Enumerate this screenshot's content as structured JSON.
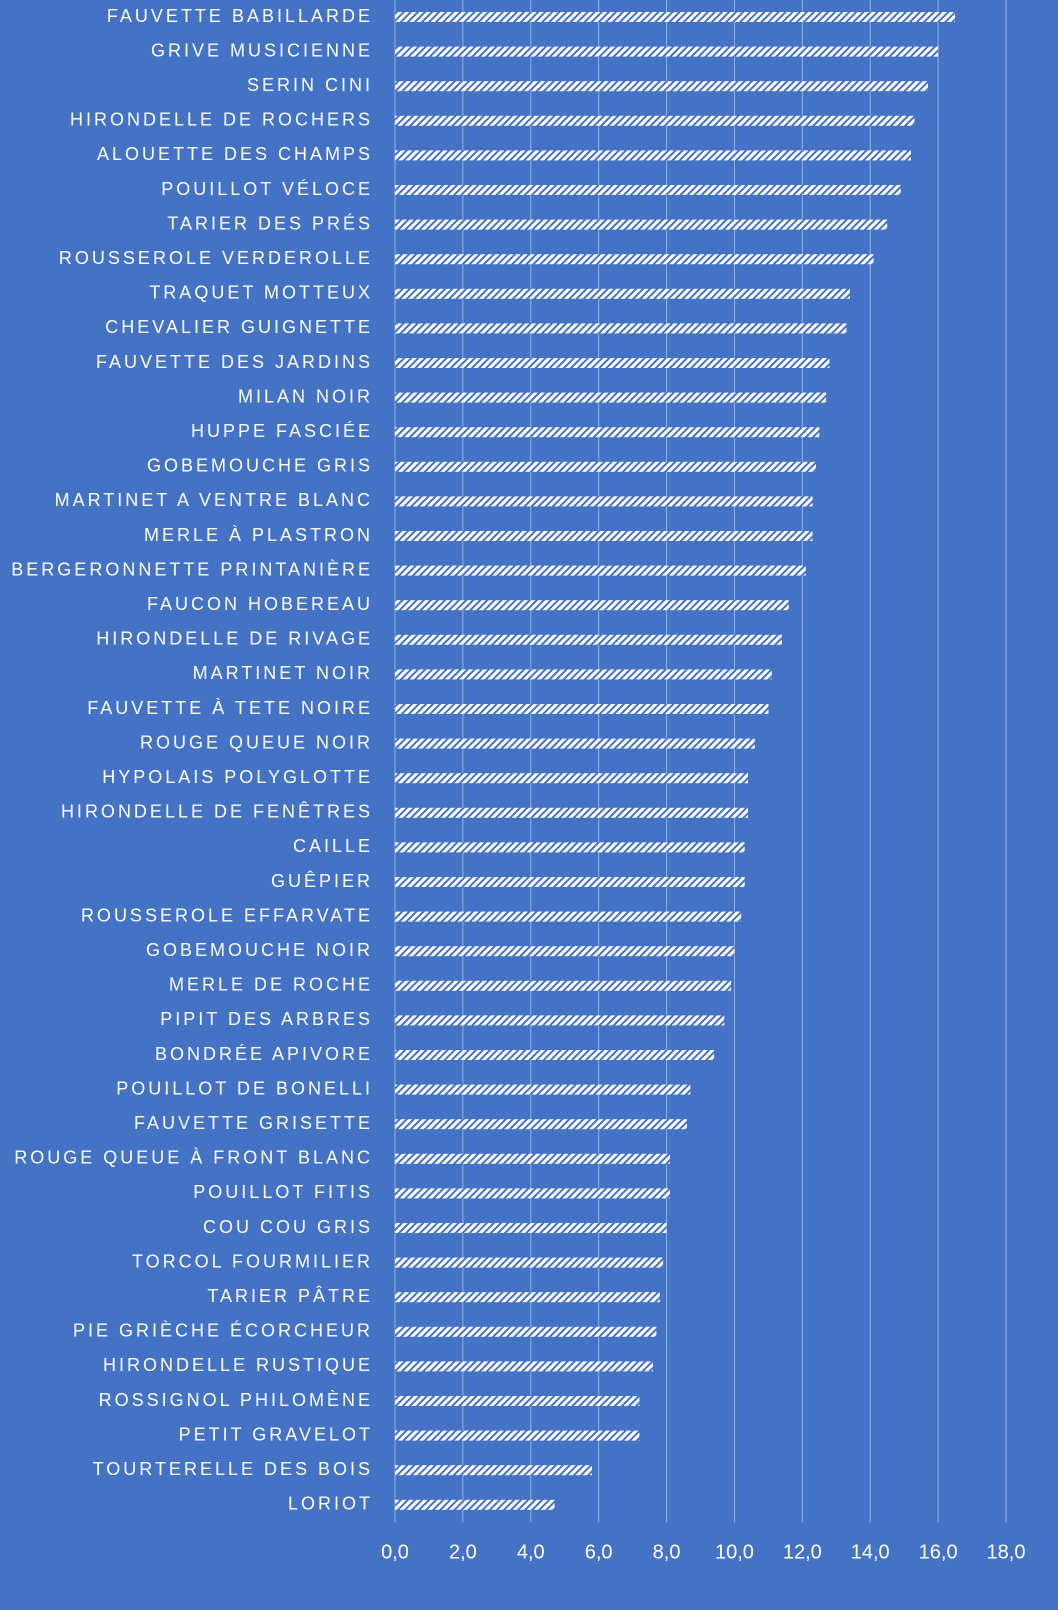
{
  "chart_data": {
    "type": "bar",
    "orientation": "horizontal",
    "background": "#4472c4",
    "color": "#ffffff",
    "grid": true,
    "categories": [
      "FAUVETTE BABILLARDE",
      "GRIVE MUSICIENNE",
      "SERIN CINI",
      "HIRONDELLE DE ROCHERS",
      "ALOUETTE DES CHAMPS",
      "POUILLOT VÉLOCE",
      "TARIER DES PRÉS",
      "ROUSSEROLE VERDEROLLE",
      "TRAQUET MOTTEUX",
      "CHEVALIER GUIGNETTE",
      "FAUVETTE DES JARDINS",
      "MILAN NOIR",
      "HUPPE FASCIÉE",
      "GOBEMOUCHE GRIS",
      "MARTINET A VENTRE BLANC",
      "MERLE À PLASTRON",
      "BERGERONNETTE PRINTANIÈRE",
      "FAUCON HOBEREAU",
      "HIRONDELLE DE RIVAGE",
      "MARTINET NOIR",
      "FAUVETTE À TETE NOIRE",
      "ROUGE QUEUE NOIR",
      "HYPOLAIS POLYGLOTTE",
      "HIRONDELLE DE FENÊTRES",
      "CAILLE",
      "GUÊPIER",
      "ROUSSEROLE EFFARVATE",
      "GOBEMOUCHE NOIR",
      "MERLE DE ROCHE",
      "PIPIT DES ARBRES",
      "BONDRÉE APIVORE",
      "POUILLOT DE BONELLI",
      "FAUVETTE GRISETTE",
      "ROUGE QUEUE À FRONT BLANC",
      "POUILLOT FITIS",
      "COU COU GRIS",
      "TORCOL FOURMILIER",
      "TARIER PÂTRE",
      "PIE GRIÈCHE ÉCORCHEUR",
      "HIRONDELLE RUSTIQUE",
      "ROSSIGNOL PHILOMÈNE",
      "PETIT GRAVELOT",
      "TOURTERELLE DES BOIS",
      "LORIOT"
    ],
    "values": [
      16.5,
      16.0,
      15.7,
      15.3,
      15.2,
      14.9,
      14.5,
      14.1,
      13.4,
      13.3,
      12.8,
      12.7,
      12.5,
      12.4,
      12.3,
      12.3,
      12.1,
      11.6,
      11.4,
      11.1,
      11.0,
      10.6,
      10.4,
      10.4,
      10.3,
      10.3,
      10.2,
      10.0,
      9.9,
      9.7,
      9.4,
      8.7,
      8.6,
      8.1,
      8.1,
      8.0,
      7.9,
      7.8,
      7.7,
      7.6,
      7.2,
      7.2,
      5.8,
      4.7
    ],
    "xlim": [
      0,
      18
    ],
    "xticks": [
      {
        "value": 0,
        "label": "0,0"
      },
      {
        "value": 2,
        "label": "2,0"
      },
      {
        "value": 4,
        "label": "4,0"
      },
      {
        "value": 6,
        "label": "6,0"
      },
      {
        "value": 8,
        "label": "8,0"
      },
      {
        "value": 10,
        "label": "10,0"
      },
      {
        "value": 12,
        "label": "12,0"
      },
      {
        "value": 14,
        "label": "14,0"
      },
      {
        "value": 16,
        "label": "16,0"
      },
      {
        "value": 18,
        "label": "18,0"
      }
    ]
  }
}
